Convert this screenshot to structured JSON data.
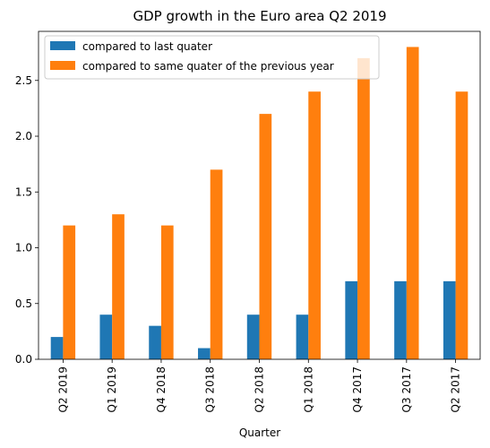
{
  "chart_data": {
    "type": "bar",
    "title": "GDP growth in the Euro area Q2 2019",
    "xlabel": "Quarter",
    "ylabel": "",
    "categories": [
      "Q2 2019",
      "Q1 2019",
      "Q4 2018",
      "Q3 2018",
      "Q2 2018",
      "Q1 2018",
      "Q4 2017",
      "Q3 2017",
      "Q2 2017"
    ],
    "series": [
      {
        "name": "compared to last quater",
        "color": "#1f77b4",
        "values": [
          0.2,
          0.4,
          0.3,
          0.1,
          0.4,
          0.4,
          0.7,
          0.7,
          0.7
        ]
      },
      {
        "name": "compared to same quater of the previous year",
        "color": "#ff7f0e",
        "values": [
          1.2,
          1.3,
          1.2,
          1.7,
          2.2,
          2.4,
          2.7,
          2.8,
          2.4
        ]
      }
    ],
    "ylim": [
      0,
      2.94
    ],
    "yticks": [
      "0.0",
      "0.5",
      "1.0",
      "1.5",
      "2.0",
      "2.5"
    ],
    "grid": false,
    "legend_position": "top-left"
  }
}
